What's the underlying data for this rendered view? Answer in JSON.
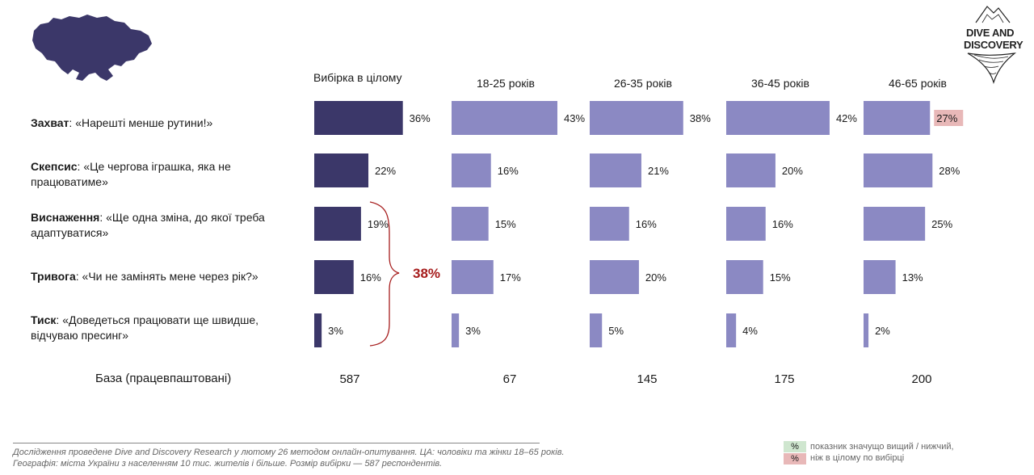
{
  "header": {
    "map_icon": "ukraine-map-icon",
    "logo": {
      "line1": "DIVE AND",
      "line2": "DISCOVERY",
      "icon": "mountain-logo-icon"
    }
  },
  "chart_data": {
    "type": "bar",
    "orientation": "horizontal",
    "groups": [
      "Вибірка в цілому",
      "18-25 років",
      "26-35 років",
      "36-45 років",
      "46-65 років"
    ],
    "categories": [
      {
        "key": "Захват",
        "quote": ": «Нарешті менше рутини!»"
      },
      {
        "key": "Скепсис",
        "quote": ": «Це чергова іграшка, яка не працюватиме»"
      },
      {
        "key": "Виснаження",
        "quote": ": «Ще одна зміна, до якої треба адаптуватися»"
      },
      {
        "key": "Тривога",
        "quote": ": «Чи не замінять мене через рік?»"
      },
      {
        "key": "Тиск",
        "quote": ": «Доведеться працювати ще швидше, відчуваю пресинг»"
      }
    ],
    "series": [
      {
        "values": [
          36,
          22,
          19,
          16,
          3
        ],
        "color": "#3b3769",
        "labels": [
          "36%",
          "22%",
          "19%",
          "16%",
          "3%"
        ]
      },
      {
        "values": [
          43,
          16,
          15,
          17,
          3
        ],
        "color": "#8b89c3",
        "labels": [
          "43%",
          "16%",
          "15%",
          "17%",
          "3%"
        ]
      },
      {
        "values": [
          38,
          21,
          16,
          20,
          5
        ],
        "color": "#8b89c3",
        "labels": [
          "38%",
          "21%",
          "16%",
          "20%",
          "5%"
        ]
      },
      {
        "values": [
          42,
          20,
          16,
          15,
          4
        ],
        "color": "#8b89c3",
        "labels": [
          "42%",
          "20%",
          "16%",
          "15%",
          "4%"
        ]
      },
      {
        "values": [
          27,
          28,
          25,
          13,
          2
        ],
        "color": "#8b89c3",
        "labels": [
          "27%",
          "28%",
          "25%",
          "13%",
          "2%"
        ],
        "significance": [
          "lower",
          null,
          null,
          null,
          null
        ]
      }
    ],
    "bracket": {
      "rows": [
        "Виснаження",
        "Тривога",
        "Тиск"
      ],
      "label": "38%",
      "color": "#a61c1c"
    },
    "xlim": [
      0,
      43
    ],
    "grid": false,
    "legend": "none"
  },
  "base": {
    "label": "База (працевпаштовані)",
    "values": [
      "587",
      "67",
      "145",
      "175",
      "200"
    ]
  },
  "footnote": {
    "line1": "Дослідження проведене Dive and Discovery Research у лютому  26 методом онлайн-опитування. ЦА: чоловіки та жінки 18–65 років.",
    "line2": "Географія: міста України з населенням 10 тис. жителів і більше. Розмір вибірки — 587 респондентів."
  },
  "legend_note": {
    "higher_color": "#cfe6cf",
    "lower_color": "#e8b8b8",
    "swatch_text": "%",
    "line1": "показник значущо вищий / нижчий,",
    "line2": "ніж в цілому по вибірці"
  }
}
